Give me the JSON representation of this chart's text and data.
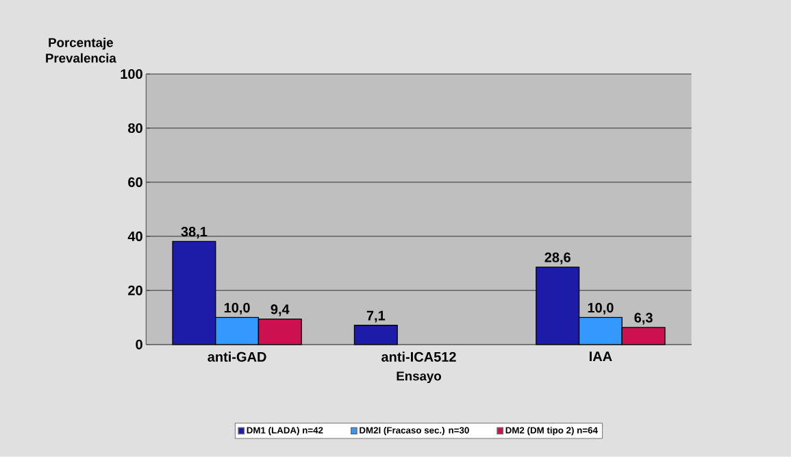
{
  "chart_data": {
    "type": "bar",
    "ylabel": "Porcentaje Prevalencia",
    "xlabel": "Ensayo",
    "categories": [
      "anti-GAD",
      "anti-ICA512",
      "IAA"
    ],
    "series": [
      {
        "name": "DM1 (LADA) n=42",
        "color": "#1c1ca8",
        "values": [
          38.1,
          7.1,
          28.6
        ],
        "value_labels": [
          "38,1",
          "7,1",
          "28,6"
        ]
      },
      {
        "name": "DM2I (Fracaso sec.) n=30",
        "color": "#3399ff",
        "values": [
          10.0,
          null,
          10.0
        ],
        "value_labels": [
          "10,0",
          null,
          "10,0"
        ]
      },
      {
        "name": "DM2 (DM tipo 2) n=64",
        "color": "#cc1050",
        "values": [
          9.4,
          null,
          6.3
        ],
        "value_labels": [
          "9,4",
          null,
          "6,3"
        ]
      }
    ],
    "ylim": [
      0,
      100
    ],
    "yticks": [
      0,
      20,
      40,
      60,
      80,
      100
    ],
    "grid": "y",
    "legend": "bottom"
  }
}
